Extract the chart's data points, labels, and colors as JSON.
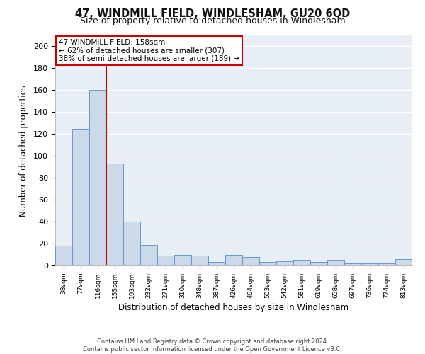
{
  "title": "47, WINDMILL FIELD, WINDLESHAM, GU20 6QD",
  "subtitle": "Size of property relative to detached houses in Windlesham",
  "xlabel": "Distribution of detached houses by size in Windlesham",
  "ylabel": "Number of detached properties",
  "bar_labels": [
    "38sqm",
    "77sqm",
    "116sqm",
    "155sqm",
    "193sqm",
    "232sqm",
    "271sqm",
    "310sqm",
    "348sqm",
    "387sqm",
    "426sqm",
    "464sqm",
    "503sqm",
    "542sqm",
    "581sqm",
    "619sqm",
    "658sqm",
    "697sqm",
    "736sqm",
    "774sqm",
    "813sqm"
  ],
  "bar_values": [
    18,
    125,
    160,
    93,
    40,
    19,
    9,
    10,
    9,
    3,
    10,
    8,
    3,
    4,
    5,
    3,
    5,
    2,
    2,
    2,
    6
  ],
  "bar_color": "#ccd9e8",
  "bar_edge_color": "#6699cc",
  "vline_x_index": 3,
  "vline_color": "#cc0000",
  "ylim": [
    0,
    210
  ],
  "yticks": [
    0,
    20,
    40,
    60,
    80,
    100,
    120,
    140,
    160,
    180,
    200
  ],
  "annotation_title": "47 WINDMILL FIELD: 158sqm",
  "annotation_line1": "← 62% of detached houses are smaller (307)",
  "annotation_line2": "38% of semi-detached houses are larger (189) →",
  "annotation_box_facecolor": "#ffffff",
  "annotation_box_edgecolor": "#cc0000",
  "footer_line1": "Contains HM Land Registry data © Crown copyright and database right 2024.",
  "footer_line2": "Contains public sector information licensed under the Open Government Licence v3.0.",
  "fig_facecolor": "#ffffff",
  "axes_facecolor": "#e8eef5"
}
